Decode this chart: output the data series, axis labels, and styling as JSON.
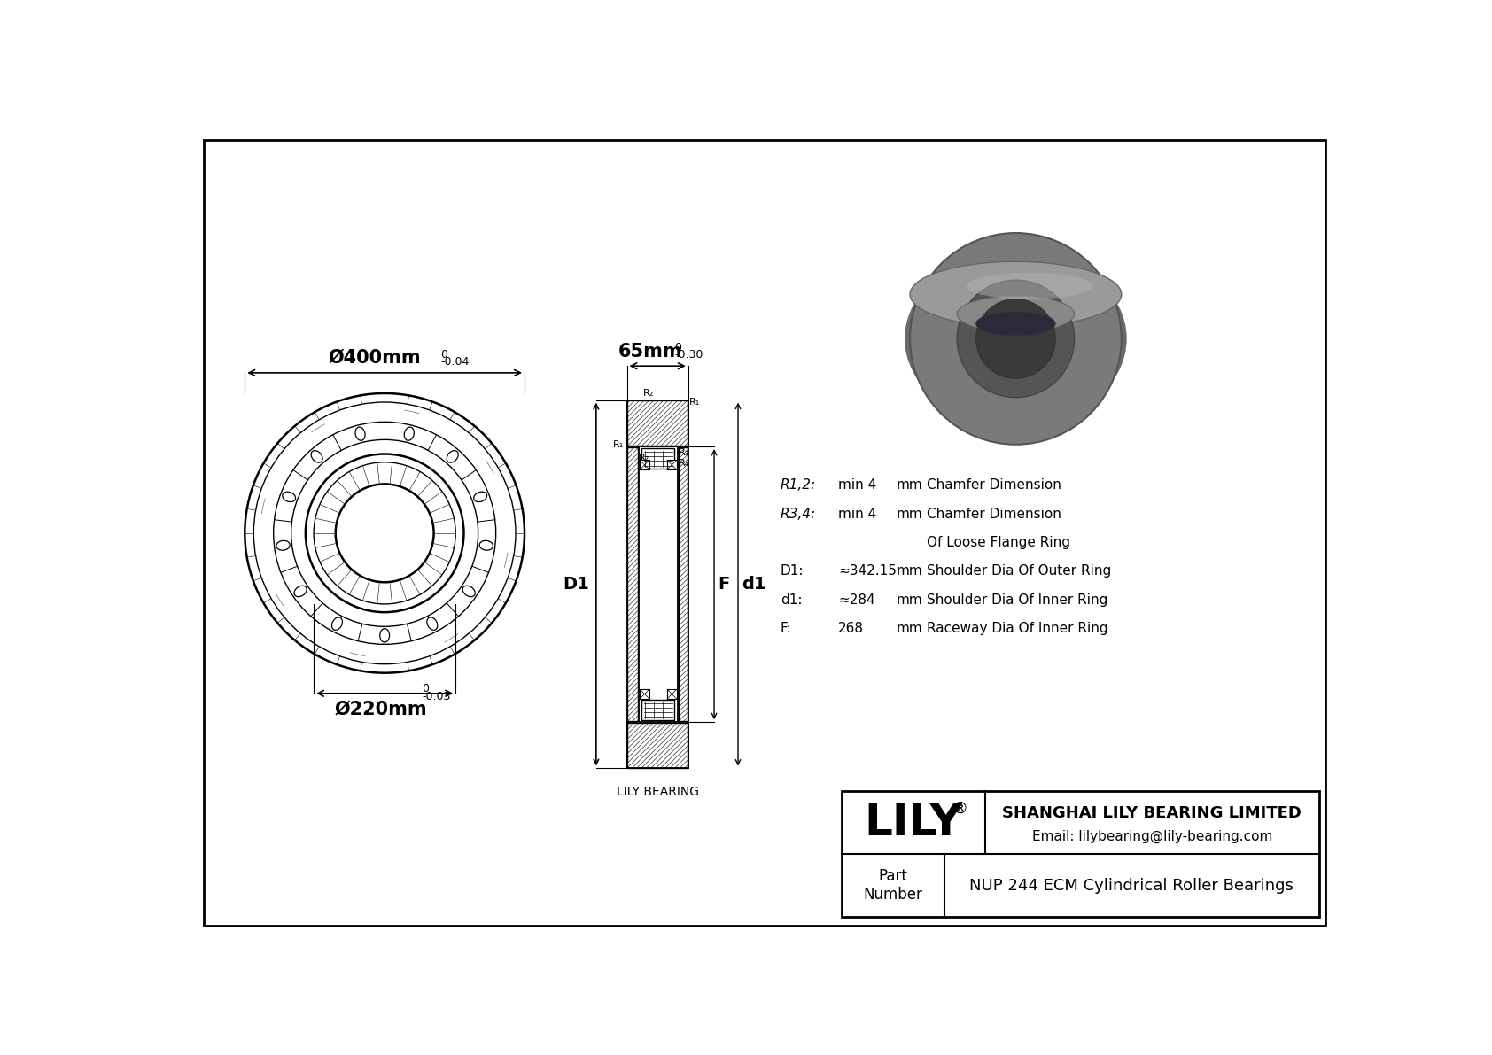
{
  "bg_color": "#ffffff",
  "border_color": "#000000",
  "line_color": "#000000",
  "title_company": "SHANGHAI LILY BEARING LIMITED",
  "title_email": "Email: lilybearing@lily-bearing.com",
  "part_label": "Part\nNumber",
  "part_number": "NUP 244 ECM Cylindrical Roller Bearings",
  "logo_text": "LILY",
  "logo_symbol": "®",
  "dim_label_outer": "Ø400mm",
  "dim_label_outer_tol_top": "0",
  "dim_label_outer_tol_bot": "-0.04",
  "dim_label_inner": "Ø220mm",
  "dim_label_inner_tol_top": "0",
  "dim_label_inner_tol_bot": "-0.03",
  "dim_label_width": "65mm",
  "dim_label_width_tol_top": "0",
  "dim_label_width_tol_bot": "-0.30",
  "cross_section_label": "LILY BEARING",
  "params": [
    {
      "label": "R1,2:",
      "value": "min 4",
      "unit": "mm",
      "desc": "Chamfer Dimension"
    },
    {
      "label": "R3,4:",
      "value": "min 4",
      "unit": "mm",
      "desc": "Chamfer Dimension"
    },
    {
      "label": "",
      "value": "",
      "unit": "",
      "desc": "Of Loose Flange Ring"
    },
    {
      "label": "D1:",
      "value": "≈342.15",
      "unit": "mm",
      "desc": "Shoulder Dia Of Outer Ring"
    },
    {
      "label": "d1:",
      "value": "≈284",
      "unit": "mm",
      "desc": "Shoulder Dia Of Inner Ring"
    },
    {
      "label": "F:",
      "value": "268",
      "unit": "mm",
      "desc": "Raceway Dia Of Inner Ring"
    }
  ]
}
